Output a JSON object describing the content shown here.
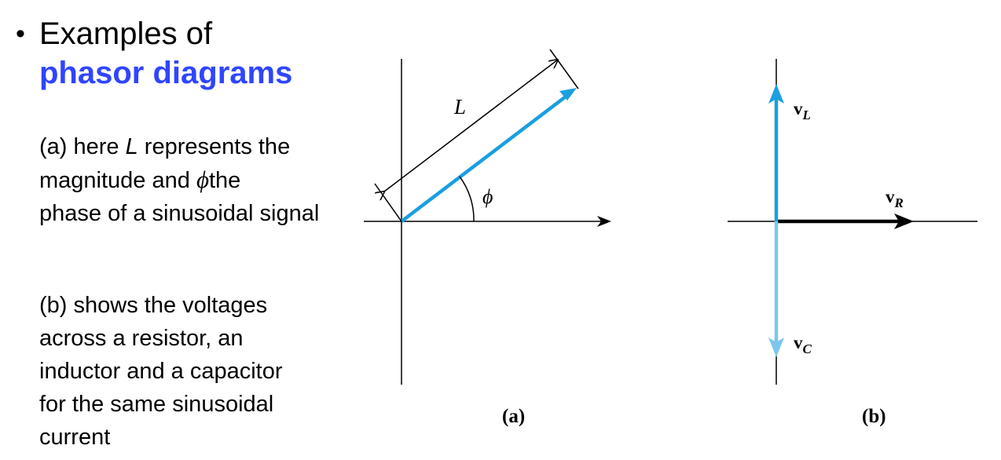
{
  "slide": {
    "bullet": "•",
    "title_line1": "Examples of",
    "title_line2": "phasor diagrams",
    "para_a": {
      "prefix": "(a) here ",
      "L": "L",
      "mid1": " represents the",
      "line2_prefix": "magnitude and ",
      "phi": "ϕ",
      "line2_suffix": "the",
      "line3": "phase of a sinusoidal signal"
    },
    "para_b": {
      "line1": "(b) shows the voltages",
      "line2": "across a resistor, an",
      "line3": "inductor and a capacitor",
      "line4": "for the same sinusoidal",
      "line5": "current"
    }
  },
  "diagram_a": {
    "magnitude_label": "L",
    "angle_label": "ϕ",
    "caption": "(a)",
    "phasor_color": "#1a9fe0"
  },
  "diagram_b": {
    "vL_main": "v",
    "vL_sub": "L",
    "vR_main": "v",
    "vR_sub": "R",
    "vC_main": "v",
    "vC_sub": "C",
    "caption": "(b)",
    "vL_color": "#1a9fe0",
    "vC_color": "#7cc6ee",
    "vR_color": "#000000"
  }
}
